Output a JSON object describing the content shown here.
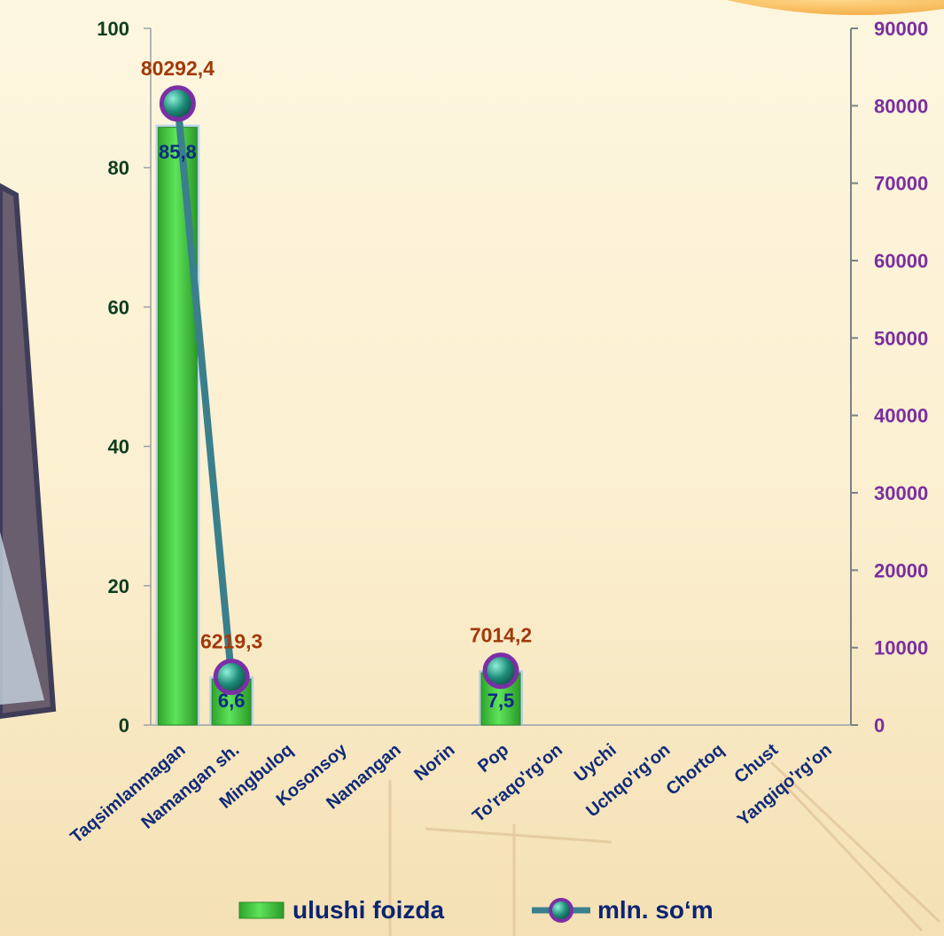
{
  "chart_data": {
    "type": "bar",
    "categories": [
      "Taqsimlanmagan",
      "Namangan sh.",
      "Mingbuloq",
      "Kosonsoy",
      "Namangan",
      "Norin",
      "Pop",
      "To'raqo'rg'on",
      "Uychi",
      "Uchqo'rg'on",
      "Chortoq",
      "Chust",
      "Yangiqo'rg'on"
    ],
    "series": [
      {
        "name": "ulushi foizda",
        "type": "bar",
        "axis": "left",
        "values": [
          85.8,
          6.6,
          null,
          null,
          null,
          null,
          7.5,
          null,
          null,
          null,
          null,
          null,
          null
        ],
        "labels": [
          "85,8",
          "6,6",
          "",
          "",
          "",
          "",
          "7,5",
          "",
          "",
          "",
          "",
          "",
          ""
        ],
        "color": "#3cc43a"
      },
      {
        "name": "mln. so‘m",
        "type": "line",
        "axis": "right",
        "values": [
          80292.4,
          6219.3,
          null,
          null,
          null,
          null,
          7014.2,
          null,
          null,
          null,
          null,
          null,
          null
        ],
        "labels": [
          "80292,4",
          "6219,3",
          "",
          "",
          "",
          "",
          "7014,2",
          "",
          "",
          "",
          "",
          "",
          ""
        ],
        "color": "#3a7f8c",
        "marker_color": "#1e8c78",
        "marker_ring": "#7b2fa5"
      }
    ],
    "y_left": {
      "range": [
        0,
        100
      ],
      "ticks": [
        0,
        20,
        40,
        60,
        80,
        100
      ],
      "tick_labels": [
        "0",
        "20",
        "40",
        "60",
        "80",
        "100"
      ],
      "color": "#0f3d1f"
    },
    "y_right": {
      "range": [
        0,
        90000
      ],
      "ticks": [
        0,
        10000,
        20000,
        30000,
        40000,
        50000,
        60000,
        70000,
        80000,
        90000
      ],
      "tick_labels": [
        "0",
        "10000",
        "20000",
        "30000",
        "40000",
        "50000",
        "60000",
        "70000",
        "80000",
        "90000"
      ],
      "color": "#7a2fa0"
    },
    "grid": false,
    "legend": "bottom"
  }
}
